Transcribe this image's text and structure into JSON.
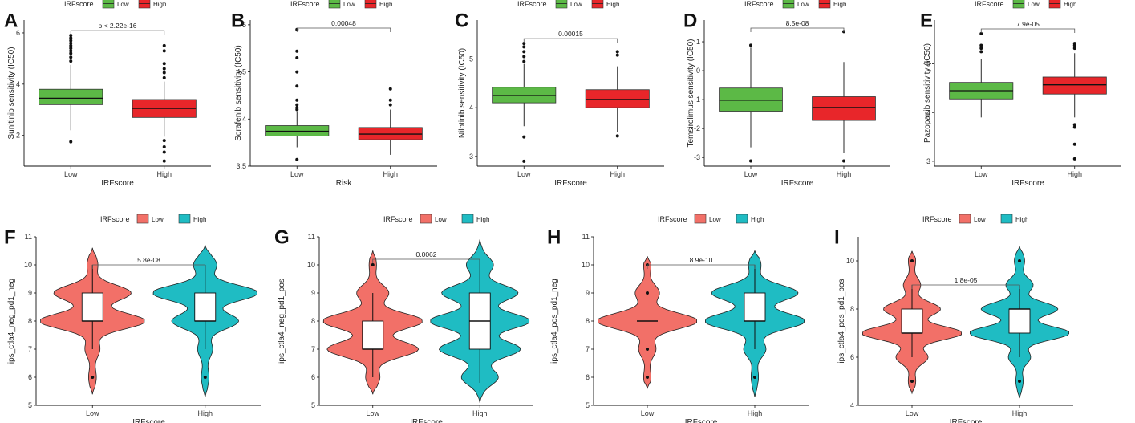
{
  "chart_data": [
    {
      "letter": "A",
      "type": "box",
      "legend_title": "IRFscore",
      "legend": [
        "Low",
        "High"
      ],
      "colors": [
        "#5cb946",
        "#e8262a"
      ],
      "ylabel": "Sunitinib sensitivity (IC50)",
      "xlabel": "IRFscore",
      "categories": [
        "Low",
        "High"
      ],
      "ylim": [
        0.8,
        6.5
      ],
      "yticks": [
        2,
        4,
        6
      ],
      "pvalue": "p < 2.22e-16",
      "groups": [
        {
          "q1": 3.2,
          "med": 3.45,
          "q3": 3.8,
          "wlo": 2.2,
          "whi": 4.75,
          "outliers": [
            1.75,
            4.9,
            5.05,
            5.2,
            5.3,
            5.4,
            5.5,
            5.6,
            5.7,
            5.8,
            5.9
          ]
        },
        {
          "q1": 2.7,
          "med": 3.05,
          "q3": 3.4,
          "wlo": 1.95,
          "whi": 4.1,
          "outliers": [
            1.0,
            1.35,
            1.55,
            1.8,
            4.25,
            4.45,
            4.6,
            4.8,
            5.3,
            5.5
          ]
        }
      ]
    },
    {
      "letter": "B",
      "type": "box",
      "legend_title": "IRFscore",
      "legend": [
        "Low",
        "High"
      ],
      "colors": [
        "#5cb946",
        "#e8262a"
      ],
      "ylabel": "Sorafenib sensitivity (IC50)",
      "xlabel": "Risk",
      "categories": [
        "Low",
        "High"
      ],
      "ylim": [
        3.5,
        5.05
      ],
      "yticks": [
        3.5,
        4.0,
        4.5,
        5.0
      ],
      "pvalue": "0.00048",
      "groups": [
        {
          "q1": 3.82,
          "med": 3.87,
          "q3": 3.93,
          "wlo": 3.7,
          "whi": 4.08,
          "outliers": [
            3.57,
            4.1,
            4.12,
            4.15,
            4.2,
            4.35,
            4.5,
            4.65,
            4.72,
            4.95
          ]
        },
        {
          "q1": 3.78,
          "med": 3.84,
          "q3": 3.91,
          "wlo": 3.62,
          "whi": 4.1,
          "outliers": [
            4.15,
            4.2,
            4.32
          ]
        }
      ]
    },
    {
      "letter": "C",
      "type": "box",
      "legend_title": "IRFscore",
      "legend": [
        "Low",
        "High"
      ],
      "colors": [
        "#5cb946",
        "#e8262a"
      ],
      "ylabel": "Nilotinib sensitivity (IC50)",
      "xlabel": "IRFscore",
      "categories": [
        "Low",
        "High"
      ],
      "ylim": [
        2.8,
        5.8
      ],
      "yticks": [
        3,
        4,
        5
      ],
      "pvalue": "0.00015",
      "groups": [
        {
          "q1": 4.1,
          "med": 4.25,
          "q3": 4.42,
          "wlo": 3.62,
          "whi": 4.9,
          "outliers": [
            2.9,
            3.4,
            4.95,
            5.05,
            5.15,
            5.25,
            5.32
          ]
        },
        {
          "q1": 4.0,
          "med": 4.17,
          "q3": 4.37,
          "wlo": 3.5,
          "whi": 4.85,
          "outliers": [
            3.42,
            5.08,
            5.15
          ]
        }
      ]
    },
    {
      "letter": "D",
      "type": "box",
      "legend_title": "IRFscore",
      "legend": [
        "Low",
        "High"
      ],
      "colors": [
        "#5cb946",
        "#e8262a"
      ],
      "ylabel": "Temsirolimus sensitivity (IC50)",
      "xlabel": "IRFscore",
      "categories": [
        "Low",
        "High"
      ],
      "ylim": [
        -3.3,
        1.75
      ],
      "yticks": [
        -3,
        -2,
        -1,
        0,
        1
      ],
      "pvalue": "8.5e-08",
      "groups": [
        {
          "q1": -1.4,
          "med": -1.02,
          "q3": -0.6,
          "wlo": -2.65,
          "whi": 0.8,
          "outliers": [
            -3.12,
            0.88
          ]
        },
        {
          "q1": -1.72,
          "med": -1.27,
          "q3": -0.9,
          "wlo": -2.85,
          "whi": 0.3,
          "outliers": [
            -3.12,
            1.35
          ]
        }
      ]
    },
    {
      "letter": "E",
      "type": "box",
      "legend_title": "IRFscore",
      "legend": [
        "Low",
        "High"
      ],
      "colors": [
        "#5cb946",
        "#e8262a"
      ],
      "ylabel": "Pazopanib sensitivity (IC50)",
      "xlabel": "IRFscore",
      "categories": [
        "Low",
        "High"
      ],
      "ylim": [
        2.9,
        5.9
      ],
      "yticks": [
        3,
        4,
        5
      ],
      "pvalue": "7.9e-05",
      "groups": [
        {
          "q1": 4.28,
          "med": 4.45,
          "q3": 4.62,
          "wlo": 3.9,
          "whi": 5.1,
          "outliers": [
            5.25,
            5.32,
            5.38,
            5.62
          ]
        },
        {
          "q1": 4.38,
          "med": 4.57,
          "q3": 4.73,
          "wlo": 3.9,
          "whi": 5.22,
          "outliers": [
            3.05,
            3.35,
            3.7,
            3.75,
            5.32,
            5.38,
            5.42
          ]
        }
      ]
    },
    {
      "letter": "F",
      "type": "violin",
      "legend_title": "IRFscore",
      "legend": [
        "Low",
        "High"
      ],
      "colors": [
        "#f27068",
        "#1fbcc3"
      ],
      "ylabel": "ips_ctla4_neg_pd1_neg",
      "xlabel": "IRFscore",
      "categories": [
        "Low",
        "High"
      ],
      "ylim": [
        5,
        11
      ],
      "yticks": [
        5,
        6,
        7,
        8,
        9,
        10,
        11
      ],
      "pvalue": "5.8e-08",
      "groups": [
        {
          "q1": 8,
          "med": 8,
          "q3": 9,
          "wlo": 7,
          "whi": 10,
          "outliers": [
            6
          ],
          "range": [
            5.4,
            10.6
          ],
          "modes": [
            {
              "y": 6,
              "h": 0.05
            },
            {
              "y": 7,
              "h": 0.12
            },
            {
              "y": 8,
              "h": 1.0
            },
            {
              "y": 9,
              "h": 0.72
            },
            {
              "y": 10,
              "h": 0.08
            }
          ]
        },
        {
          "q1": 8,
          "med": 8,
          "q3": 9,
          "wlo": 7,
          "whi": 10,
          "outliers": [
            6
          ],
          "range": [
            5.3,
            10.7
          ],
          "modes": [
            {
              "y": 6,
              "h": 0.05
            },
            {
              "y": 7,
              "h": 0.12
            },
            {
              "y": 8,
              "h": 0.62
            },
            {
              "y": 9,
              "h": 1.0
            },
            {
              "y": 10,
              "h": 0.2
            }
          ]
        }
      ]
    },
    {
      "letter": "G",
      "type": "violin",
      "legend_title": "IRFscore",
      "legend": [
        "Low",
        "High"
      ],
      "colors": [
        "#f27068",
        "#1fbcc3"
      ],
      "ylabel": "ips_ctla4_neg_pd1_pos",
      "xlabel": "IRFscore",
      "categories": [
        "Low",
        "High"
      ],
      "ylim": [
        5,
        11
      ],
      "yticks": [
        5,
        6,
        7,
        8,
        9,
        10,
        11
      ],
      "pvalue": "0.0062",
      "groups": [
        {
          "q1": 7,
          "med": 7,
          "q3": 8,
          "wlo": 6,
          "whi": 9,
          "outliers": [
            10
          ],
          "range": [
            5.4,
            10.5
          ],
          "modes": [
            {
              "y": 6,
              "h": 0.12
            },
            {
              "y": 7,
              "h": 0.9
            },
            {
              "y": 8,
              "h": 1.0
            },
            {
              "y": 9,
              "h": 0.3
            },
            {
              "y": 10,
              "h": 0.05
            }
          ]
        },
        {
          "q1": 7,
          "med": 8,
          "q3": 9,
          "wlo": 5.8,
          "whi": 10.2,
          "outliers": [],
          "range": [
            5.1,
            10.9
          ],
          "modes": [
            {
              "y": 6,
              "h": 0.35
            },
            {
              "y": 7,
              "h": 0.8
            },
            {
              "y": 8,
              "h": 1.0
            },
            {
              "y": 9,
              "h": 0.75
            },
            {
              "y": 10,
              "h": 0.25
            }
          ]
        }
      ]
    },
    {
      "letter": "H",
      "type": "violin",
      "legend_title": "IRFscore",
      "legend": [
        "Low",
        "High"
      ],
      "colors": [
        "#f27068",
        "#1fbcc3"
      ],
      "ylabel": "ips_ctla4_pos_pd1_neg",
      "xlabel": "IRFscore",
      "categories": [
        "Low",
        "High"
      ],
      "ylim": [
        5,
        11
      ],
      "yticks": [
        5,
        6,
        7,
        8,
        9,
        10,
        11
      ],
      "pvalue": "8.9e-10",
      "groups": [
        {
          "q1": 8,
          "med": 8,
          "q3": 8,
          "wlo": 8,
          "whi": 8,
          "outliers": [
            6,
            7,
            9,
            10
          ],
          "range": [
            5.6,
            10.3
          ],
          "modes": [
            {
              "y": 6,
              "h": 0.05
            },
            {
              "y": 7,
              "h": 0.15
            },
            {
              "y": 8,
              "h": 1.0
            },
            {
              "y": 9,
              "h": 0.22
            },
            {
              "y": 10,
              "h": 0.05
            }
          ]
        },
        {
          "q1": 8,
          "med": 8,
          "q3": 9,
          "wlo": 7,
          "whi": 10,
          "outliers": [
            6
          ],
          "range": [
            5.3,
            10.5
          ],
          "modes": [
            {
              "y": 6,
              "h": 0.05
            },
            {
              "y": 7,
              "h": 0.2
            },
            {
              "y": 8,
              "h": 1.0
            },
            {
              "y": 9,
              "h": 0.85
            },
            {
              "y": 10,
              "h": 0.1
            }
          ]
        }
      ]
    },
    {
      "letter": "I",
      "type": "violin",
      "legend_title": "IRFscore",
      "legend": [
        "Low",
        "High"
      ],
      "colors": [
        "#f27068",
        "#1fbcc3"
      ],
      "ylabel": "ips_ctla4_pos_pd1_pos",
      "xlabel": "IRFscore",
      "categories": [
        "Low",
        "High"
      ],
      "ylim": [
        4,
        11
      ],
      "yticks": [
        4,
        6,
        8,
        10
      ],
      "pvalue": "1.8e-05",
      "groups": [
        {
          "q1": 7,
          "med": 7,
          "q3": 8,
          "wlo": 6,
          "whi": 9,
          "outliers": [
            5,
            10
          ],
          "range": [
            4.5,
            10.4
          ],
          "modes": [
            {
              "y": 5,
              "h": 0.05
            },
            {
              "y": 6,
              "h": 0.3
            },
            {
              "y": 7,
              "h": 1.0
            },
            {
              "y": 8,
              "h": 0.55
            },
            {
              "y": 9,
              "h": 0.15
            },
            {
              "y": 10,
              "h": 0.05
            }
          ]
        },
        {
          "q1": 7,
          "med": 8,
          "q3": 8,
          "wlo": 6,
          "whi": 9,
          "outliers": [
            5,
            10
          ],
          "range": [
            4.3,
            10.6
          ],
          "modes": [
            {
              "y": 5,
              "h": 0.05
            },
            {
              "y": 6,
              "h": 0.2
            },
            {
              "y": 7,
              "h": 1.0
            },
            {
              "y": 8,
              "h": 0.75
            },
            {
              "y": 9,
              "h": 0.25
            },
            {
              "y": 10,
              "h": 0.08
            }
          ]
        }
      ]
    }
  ]
}
